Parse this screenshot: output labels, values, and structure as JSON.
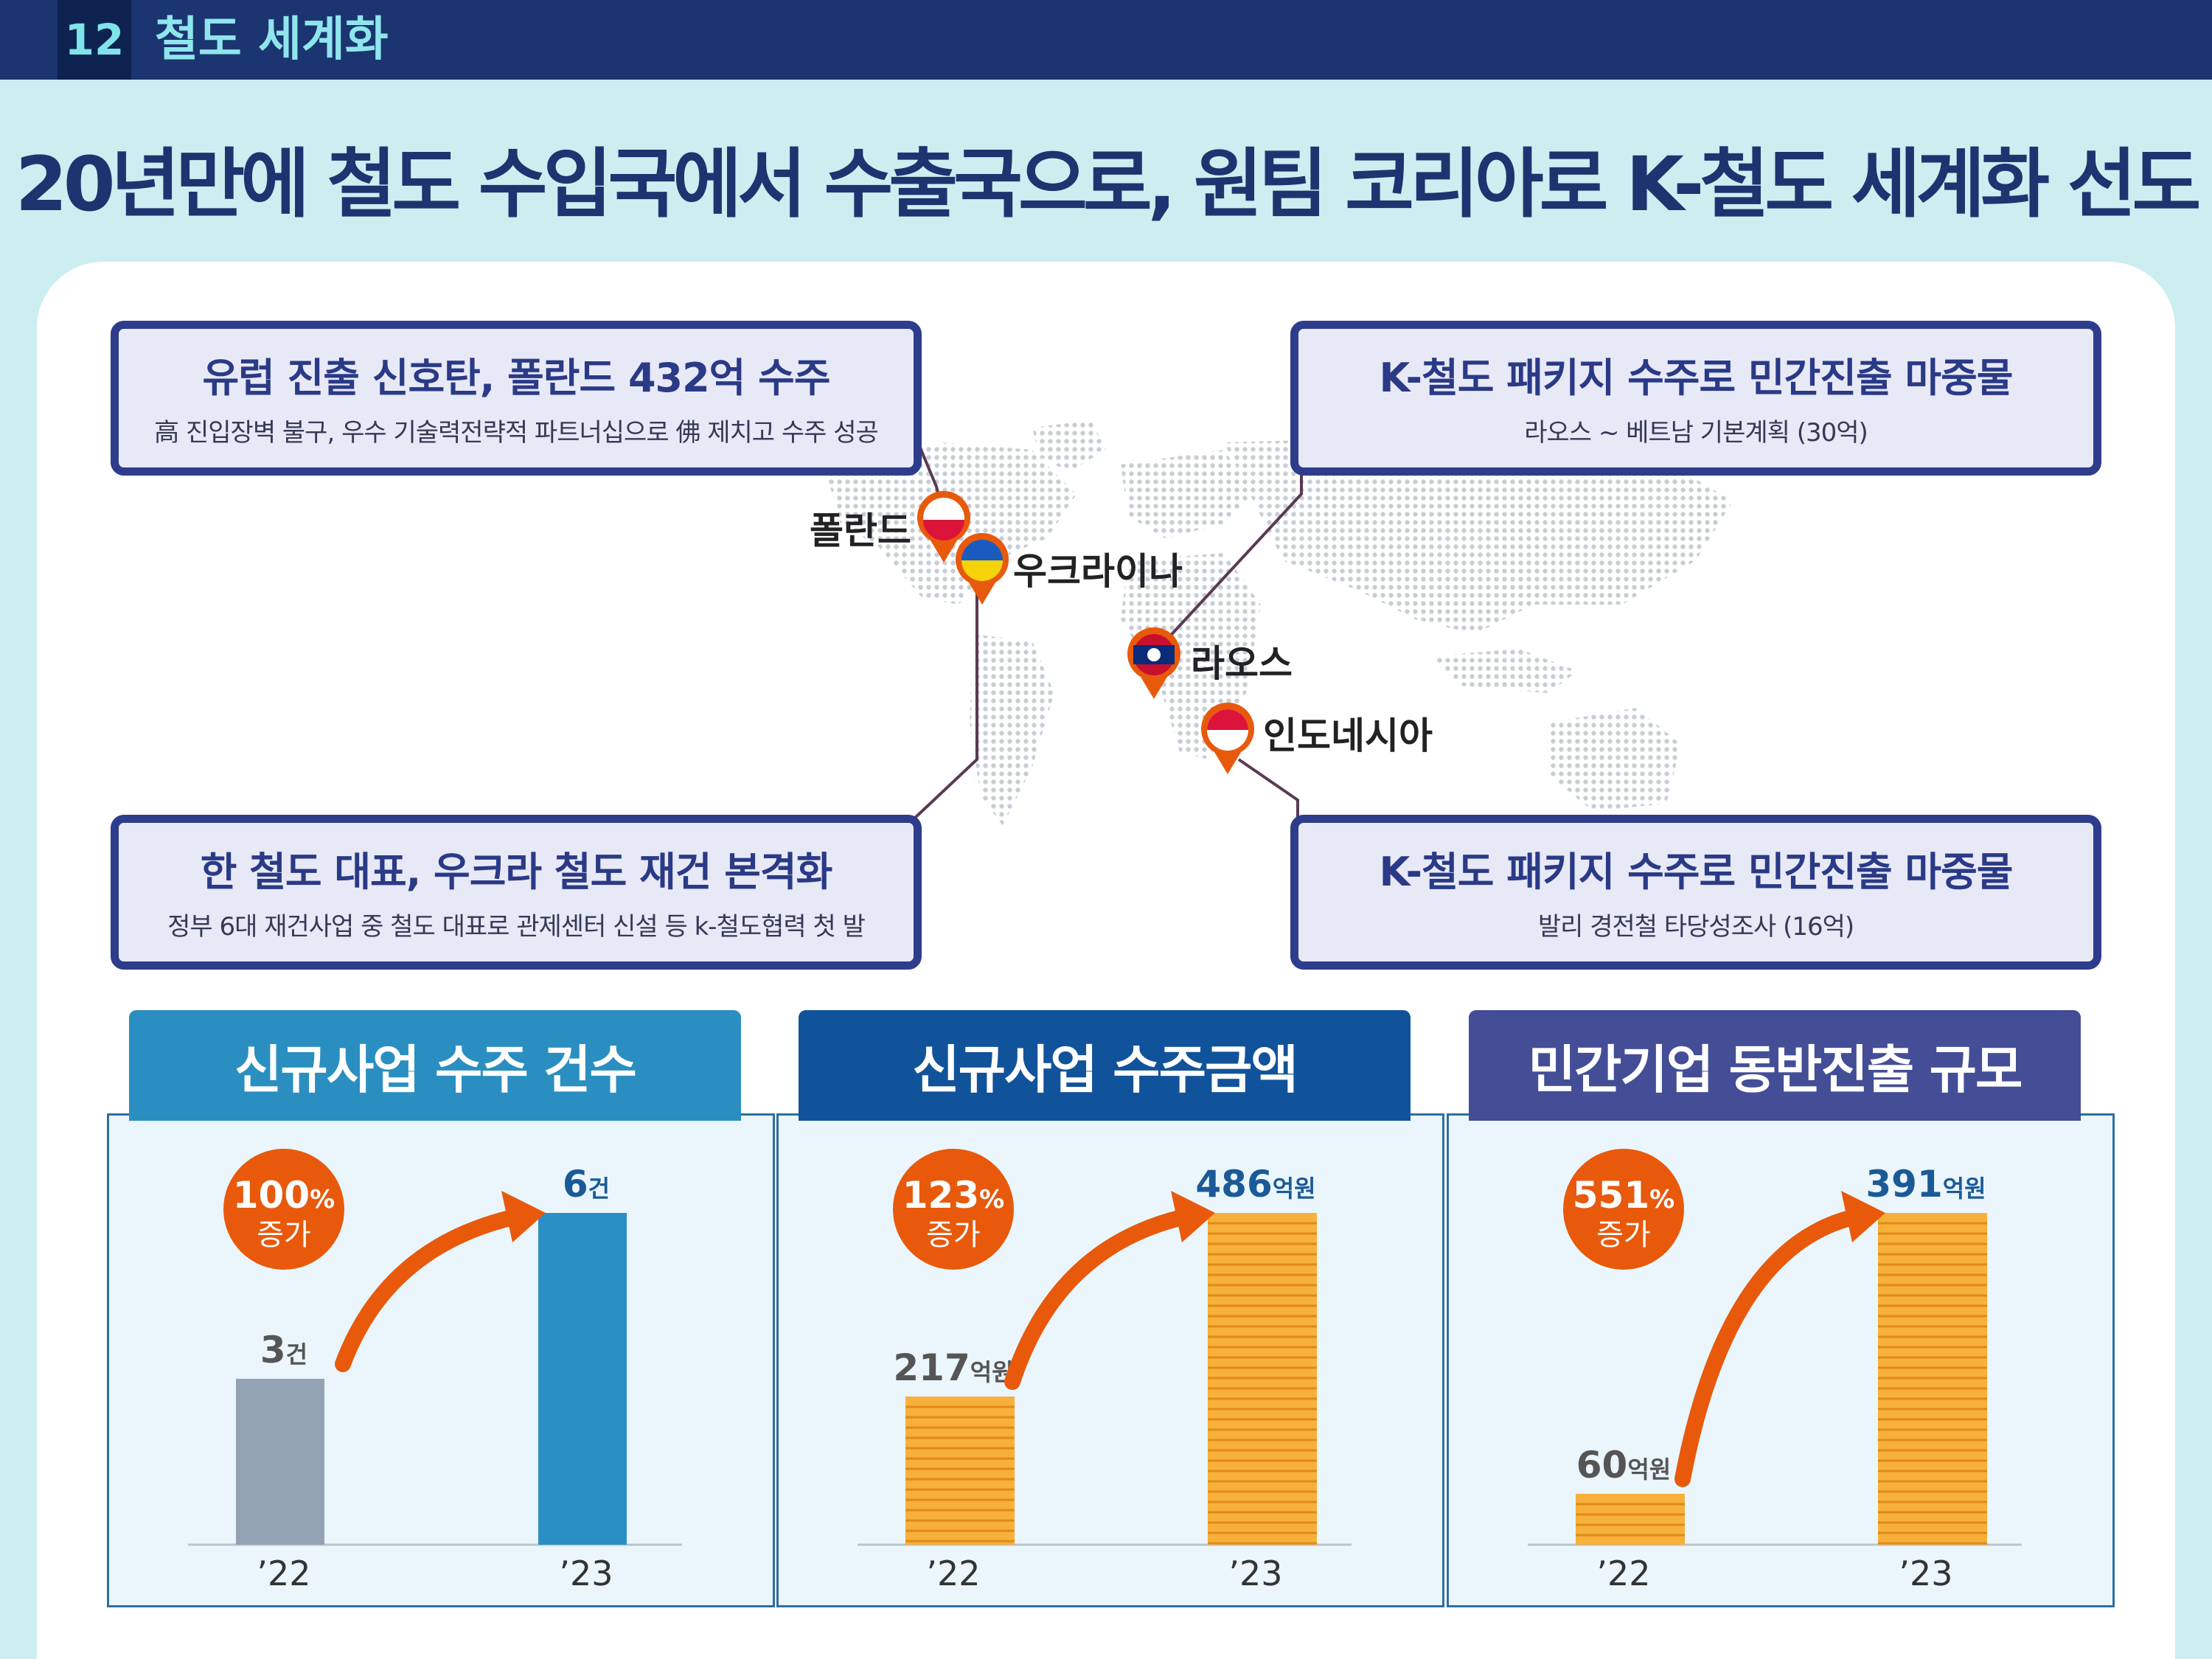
{
  "header": {
    "section_number": "12",
    "section_title": "철도 세계화"
  },
  "headline": "20년만에 철도 수입국에서 수출국으로, 원팀 코리아로 K-철도 세계화 선도",
  "callouts": [
    {
      "title": "유럽 진출 신호탄, 폴란드 432억 수주",
      "subtitle": "高 진입장벽 불구, 우수 기술력전략적 파트너십으로 佛 제치고 수주 성공"
    },
    {
      "title": "K-철도 패키지 수주로 민간진출 마중물",
      "subtitle": "라오스 ~ 베트남 기본계획 (30억)"
    },
    {
      "title": "한 철도 대표, 우크라 철도 재건 본격화",
      "subtitle": "정부 6대 재건사업 중 철도 대표로 관제센터 신설 등 k-철도협력 첫 발"
    },
    {
      "title": "K-철도 패키지 수주로 민간진출 마중물",
      "subtitle": "발리 경전철 타당성조사 (16억)"
    }
  ],
  "countries": [
    "폴란드",
    "우크라이나",
    "라오스",
    "인도네시아"
  ],
  "colors": {
    "navy": "#1b3570",
    "callout_border": "#2e3c8c",
    "header_teal": "#2a8fc0",
    "header_blue": "#11539a",
    "header_purple": "#434e96",
    "bar_gray": "#94a3b4",
    "bar_blue": "#2a8fc4",
    "coin_gold": "#f7b03a",
    "badge_orange": "#e8590c"
  },
  "chart_data": [
    {
      "type": "bar",
      "title": "신규사업 수주 건수",
      "categories": [
        "’22",
        "’23"
      ],
      "values": [
        3,
        6
      ],
      "value_labels": [
        {
          "num": "3",
          "unit": "건"
        },
        {
          "num": "6",
          "unit": "건"
        }
      ],
      "growth": {
        "pct": "100",
        "pct_sign": "%",
        "text": "증가"
      },
      "ylim": [
        0,
        6
      ]
    },
    {
      "type": "bar",
      "title": "신규사업 수주금액",
      "categories": [
        "’22",
        "’23"
      ],
      "values": [
        217,
        486
      ],
      "value_labels": [
        {
          "num": "217",
          "unit": "억원"
        },
        {
          "num": "486",
          "unit": "억원"
        }
      ],
      "growth": {
        "pct": "123",
        "pct_sign": "%",
        "text": "증가"
      },
      "ylim": [
        0,
        486
      ]
    },
    {
      "type": "bar",
      "title": "민간기업 동반진출 규모",
      "categories": [
        "’22",
        "’23"
      ],
      "values": [
        60,
        391
      ],
      "value_labels": [
        {
          "num": "60",
          "unit": "억원"
        },
        {
          "num": "391",
          "unit": "억원"
        }
      ],
      "growth": {
        "pct": "551",
        "pct_sign": "%",
        "text": "증가"
      },
      "ylim": [
        0,
        391
      ]
    }
  ]
}
